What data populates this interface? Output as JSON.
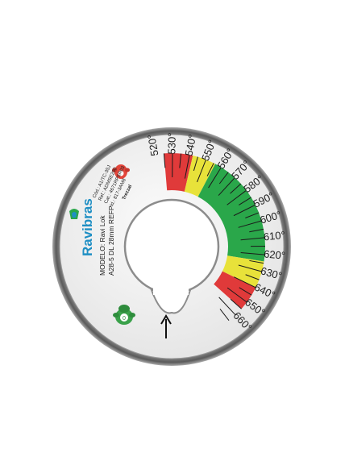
{
  "gauge": {
    "brand": "Ravibras",
    "model_lines": [
      "MODELO: Ravi Lok",
      "A28-5 DL 28mm REFP"
    ],
    "codes": [
      "Cód.: A1/TC-35J",
      "Ref.: ADMSE200",
      "Cat.: 4671RPSR03",
      "Id.: 817-3AM8",
      "Trezzal"
    ],
    "temperature_labels": [
      "520°",
      "530°",
      "540°",
      "550°",
      "560°",
      "570°",
      "580°",
      "590°",
      "600°",
      "610°",
      "620°",
      "630°",
      "640°",
      "650°",
      "660°"
    ],
    "zones": [
      {
        "name": "red-low",
        "color": "#e03a3a"
      },
      {
        "name": "yellow-low",
        "color": "#e8e23a"
      },
      {
        "name": "green",
        "color": "#2aa74a"
      },
      {
        "name": "yellow-high",
        "color": "#e8e23a"
      },
      {
        "name": "red-high",
        "color": "#e03a3a"
      }
    ],
    "arrow_icon": "arrow-up-icon",
    "mascot_icon": "green-mascot-icon"
  }
}
